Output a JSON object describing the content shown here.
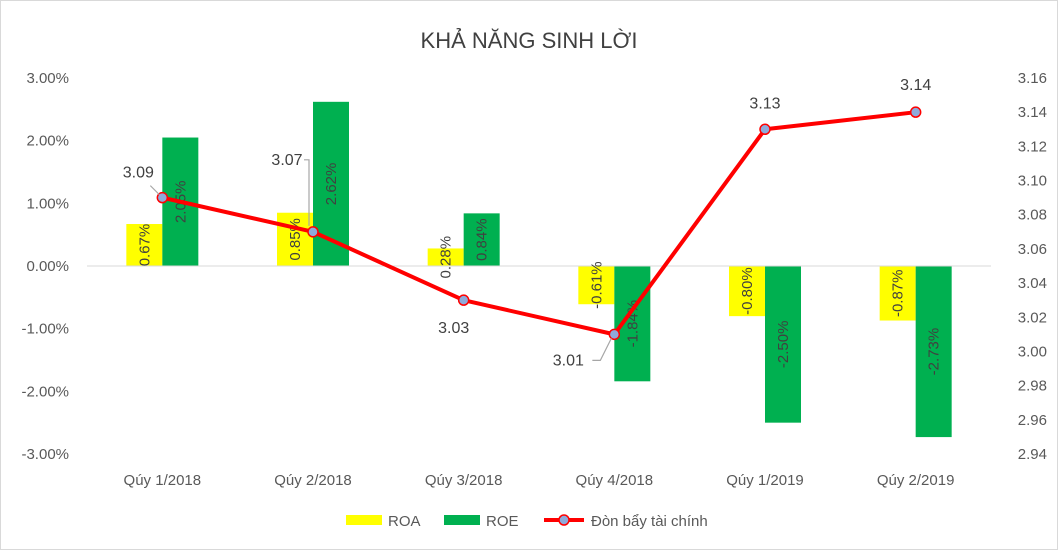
{
  "chart_data": {
    "type": "bar+line",
    "title": "KHẢ NĂNG SINH LỜI",
    "categories": [
      "Qúy 1/2018",
      "Qúy 2/2018",
      "Qúy 3/2018",
      "Qúy 4/2018",
      "Qúy 1/2019",
      "Qúy 2/2019"
    ],
    "series": [
      {
        "name": "ROA",
        "kind": "bar",
        "axis": "left",
        "color": "#ffff00",
        "values": [
          0.0067,
          0.0085,
          0.0028,
          -0.0061,
          -0.008,
          -0.0087
        ],
        "labels": [
          "0.67%",
          "0.85%",
          "0.28%",
          "-0.61%",
          "-0.80%",
          "-0.87%"
        ]
      },
      {
        "name": "ROE",
        "kind": "bar",
        "axis": "left",
        "color": "#00b050",
        "values": [
          0.0205,
          0.0262,
          0.0084,
          -0.0184,
          -0.025,
          -0.0273
        ],
        "labels": [
          "2.05%",
          "2.62%",
          "0.84%",
          "-1.84%",
          "-2.50%",
          "-2.73%"
        ]
      },
      {
        "name": "Đòn bẩy tài chính",
        "kind": "line",
        "axis": "right",
        "color": "#ff0000",
        "marker_color": "#8eaadb",
        "values": [
          3.09,
          3.07,
          3.03,
          3.01,
          3.13,
          3.14
        ],
        "labels": [
          "3.09",
          "3.07",
          "3.03",
          "3.01",
          "3.13",
          "3.14"
        ]
      }
    ],
    "left_axis": {
      "min": -0.03,
      "max": 0.03,
      "step": 0.01,
      "tick_labels": [
        "3.00%",
        "2.00%",
        "1.00%",
        "0.00%",
        "-1.00%",
        "-2.00%",
        "-3.00%"
      ]
    },
    "right_axis": {
      "min": 2.94,
      "max": 3.16,
      "step": 0.02,
      "tick_labels": [
        "3.16",
        "3.14",
        "3.12",
        "3.10",
        "3.08",
        "3.06",
        "3.04",
        "3.02",
        "3.00",
        "2.98",
        "2.96",
        "2.94"
      ]
    },
    "legend": {
      "position": "bottom",
      "entries": [
        "ROA",
        "ROE",
        "Đòn bẩy tài chính"
      ]
    },
    "grid": false
  }
}
